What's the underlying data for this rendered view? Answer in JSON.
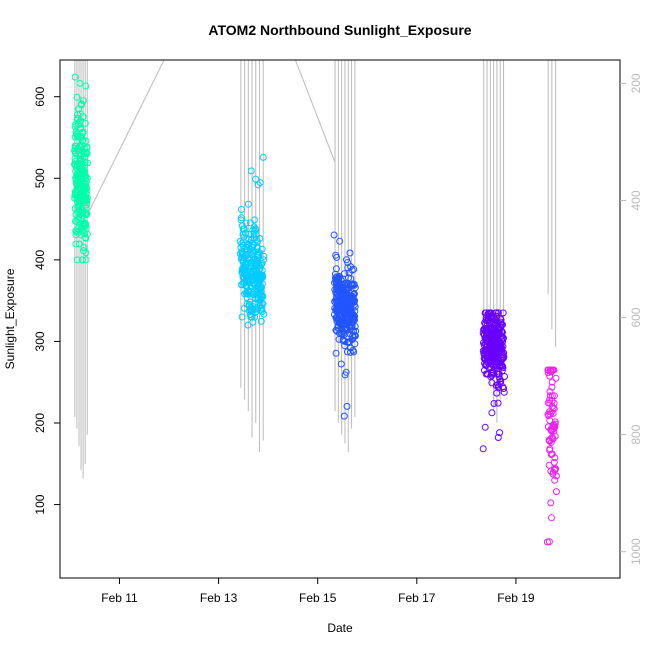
{
  "chart_data": {
    "type": "scatter",
    "title": "ATOM2 Northbound Sunlight_Exposure",
    "xlabel": "Date",
    "ylabel": "Sunlight_Exposure",
    "x_ticks": [
      "Feb 11",
      "Feb 13",
      "Feb 15",
      "Feb 17",
      "Feb 19"
    ],
    "x_tick_values": [
      11,
      13,
      15,
      17,
      19
    ],
    "y_ticks": [
      "100",
      "200",
      "300",
      "400",
      "500",
      "600"
    ],
    "y_tick_values": [
      100,
      200,
      300,
      400,
      500,
      600
    ],
    "y_right_ticks": [
      "200",
      "400",
      "600",
      "800",
      "1000"
    ],
    "y_right_tick_values": [
      200,
      400,
      600,
      800,
      1000
    ],
    "xlim": [
      9.8,
      21.1
    ],
    "ylim": [
      10,
      645
    ],
    "y_right_lim": [
      1045,
      160
    ],
    "secondary_axis_inverted": true,
    "grid": false,
    "legend": "none",
    "series": [
      {
        "color": "#00ffaa",
        "x_range": [
          10.1,
          10.35
        ],
        "y_center": 495,
        "y_spread": 45,
        "y_min": 400,
        "y_max": 625,
        "n": 240
      },
      {
        "color": "#00ccff",
        "x_range": [
          13.45,
          13.9
        ],
        "y_center": 385,
        "y_spread": 25,
        "y_min": 320,
        "y_max": 535,
        "n": 260
      },
      {
        "color": "#2255ff",
        "x_range": [
          15.35,
          15.75
        ],
        "y_center": 340,
        "y_spread": 22,
        "y_min": 202,
        "y_max": 435,
        "n": 320
      },
      {
        "color": "#6a00ff",
        "x_range": [
          18.35,
          18.75
        ],
        "y_center": 295,
        "y_spread": 25,
        "y_min": 152,
        "y_max": 335,
        "n": 300
      },
      {
        "color": "#ee22ee",
        "x_range": [
          19.65,
          19.8
        ],
        "y_center": 205,
        "y_spread": 50,
        "y_min": 32,
        "y_max": 265,
        "n": 80
      }
    ],
    "secondary_series": {
      "color": "#bbbbbb",
      "vertical_line_groups": [
        {
          "x_range": [
            10.1,
            10.35
          ],
          "low_values": [
            770,
            790,
            820,
            860,
            875,
            850,
            800
          ],
          "high_value": 160
        },
        {
          "x_range": [
            13.45,
            13.9
          ],
          "low_values": [
            720,
            740,
            760,
            805,
            780,
            830,
            810
          ],
          "high_value": 160
        },
        {
          "x_range": [
            15.35,
            15.75
          ],
          "low_values": [
            760,
            780,
            800,
            815,
            830,
            790,
            770
          ],
          "high_value": 160
        },
        {
          "x_range": [
            18.35,
            18.75
          ],
          "low_values": [
            640,
            700,
            720,
            760,
            780,
            740,
            680
          ],
          "high_value": 160
        },
        {
          "x_range": [
            19.65,
            19.8
          ],
          "low_values": [
            560,
            620,
            650
          ],
          "high_value": 160
        }
      ],
      "connector_points": [
        [
          10.35,
          425
        ],
        [
          11.9,
          160
        ],
        [
          14.55,
          160
        ],
        [
          15.35,
          335
        ]
      ]
    }
  }
}
